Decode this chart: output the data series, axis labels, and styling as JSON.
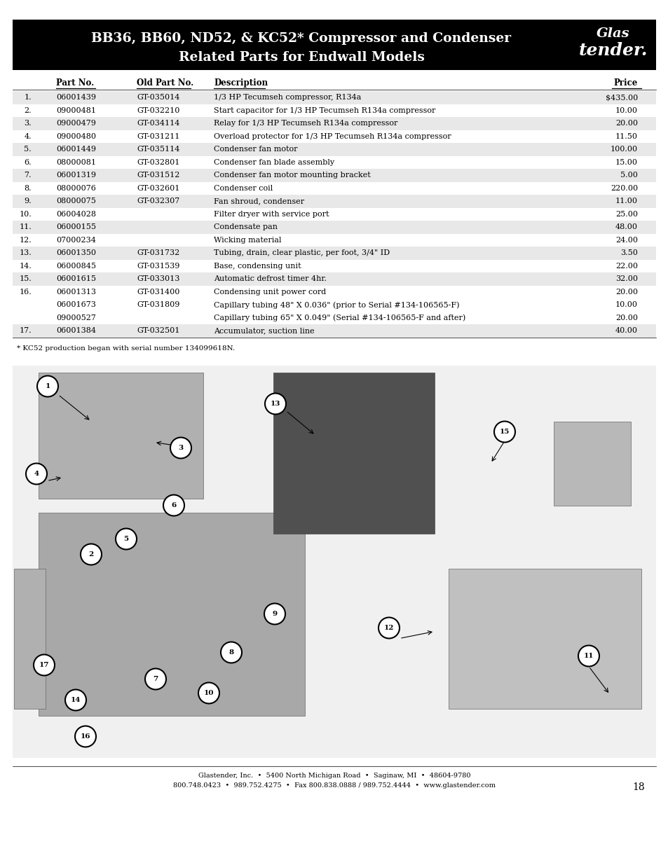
{
  "title_line1": "BB36, BB60, ND52, & KC52* Compressor and Condenser",
  "title_line2": "Related Parts for Endwall Models",
  "header_bg": "#000000",
  "header_text_color": "#ffffff",
  "col_headers": [
    "Part No.",
    "Old Part No.",
    "Description",
    "Price"
  ],
  "rows": [
    {
      "num": "1.",
      "part": "06001439",
      "old_part": "GT-035014",
      "desc": "1/3 HP Tecumseh compressor, R134a",
      "price": "$435.00",
      "shaded": true
    },
    {
      "num": "2.",
      "part": "09000481",
      "old_part": "GT-032210",
      "desc": "Start capacitor for 1/3 HP Tecumseh R134a compressor",
      "price": "10.00",
      "shaded": false
    },
    {
      "num": "3.",
      "part": "09000479",
      "old_part": "GT-034114",
      "desc": "Relay for 1/3 HP Tecumseh R134a compressor",
      "price": "20.00",
      "shaded": true
    },
    {
      "num": "4.",
      "part": "09000480",
      "old_part": "GT-031211",
      "desc": "Overload protector for 1/3 HP Tecumseh R134a compressor",
      "price": "11.50",
      "shaded": false
    },
    {
      "num": "5.",
      "part": "06001449",
      "old_part": "GT-035114",
      "desc": "Condenser fan motor",
      "price": "100.00",
      "shaded": true
    },
    {
      "num": "6.",
      "part": "08000081",
      "old_part": "GT-032801",
      "desc": "Condenser fan blade assembly",
      "price": "15.00",
      "shaded": false
    },
    {
      "num": "7.",
      "part": "06001319",
      "old_part": "GT-031512",
      "desc": "Condenser fan motor mounting bracket",
      "price": "5.00",
      "shaded": true
    },
    {
      "num": "8.",
      "part": "08000076",
      "old_part": "GT-032601",
      "desc": "Condenser coil",
      "price": "220.00",
      "shaded": false
    },
    {
      "num": "9.",
      "part": "08000075",
      "old_part": "GT-032307",
      "desc": "Fan shroud, condenser",
      "price": "11.00",
      "shaded": true
    },
    {
      "num": "10.",
      "part": "06004028",
      "old_part": "",
      "desc": "Filter dryer with service port",
      "price": "25.00",
      "shaded": false
    },
    {
      "num": "11.",
      "part": "06000155",
      "old_part": "",
      "desc": "Condensate pan",
      "price": "48.00",
      "shaded": true
    },
    {
      "num": "12.",
      "part": "07000234",
      "old_part": "",
      "desc": "Wicking material",
      "price": "24.00",
      "shaded": false
    },
    {
      "num": "13.",
      "part": "06001350",
      "old_part": "GT-031732",
      "desc": "Tubing, drain, clear plastic, per foot, 3/4\" ID",
      "price": "3.50",
      "shaded": true
    },
    {
      "num": "14.",
      "part": "06000845",
      "old_part": "GT-031539",
      "desc": "Base, condensing unit",
      "price": "22.00",
      "shaded": false
    },
    {
      "num": "15.",
      "part": "06001615",
      "old_part": "GT-033013",
      "desc": "Automatic defrost timer 4hr.",
      "price": "32.00",
      "shaded": true
    },
    {
      "num": "16.",
      "part": "06001313",
      "old_part": "GT-031400",
      "desc": "Condensing unit power cord",
      "price": "20.00",
      "shaded": false
    },
    {
      "num": "",
      "part": "06001673",
      "old_part": "GT-031809",
      "desc": "Capillary tubing 48\" X 0.036\" (prior to Serial #134-106565-F)",
      "price": "10.00",
      "shaded": false
    },
    {
      "num": "",
      "part": "09000527",
      "old_part": "",
      "desc": "Capillary tubing 65\" X 0.049\" (Serial #134-106565-F and after)",
      "price": "20.00",
      "shaded": false
    },
    {
      "num": "17.",
      "part": "06001384",
      "old_part": "GT-032501",
      "desc": "Accumulator, suction line",
      "price": "40.00",
      "shaded": true
    }
  ],
  "footnote": "* KC52 production began with serial number 134099618N.",
  "footer_line1": "Glastender, Inc.  •  5400 North Michigan Road  •  Saginaw, MI  •  48604-9780",
  "footer_line2": "800.748.0423  •  989.752.4275  •  Fax 800.838.0888 / 989.752.4444  •  www.glastender.com",
  "page_number": "18",
  "shaded_color": "#e8e8e8",
  "white_color": "#ffffff",
  "bg_color": "#ffffff"
}
